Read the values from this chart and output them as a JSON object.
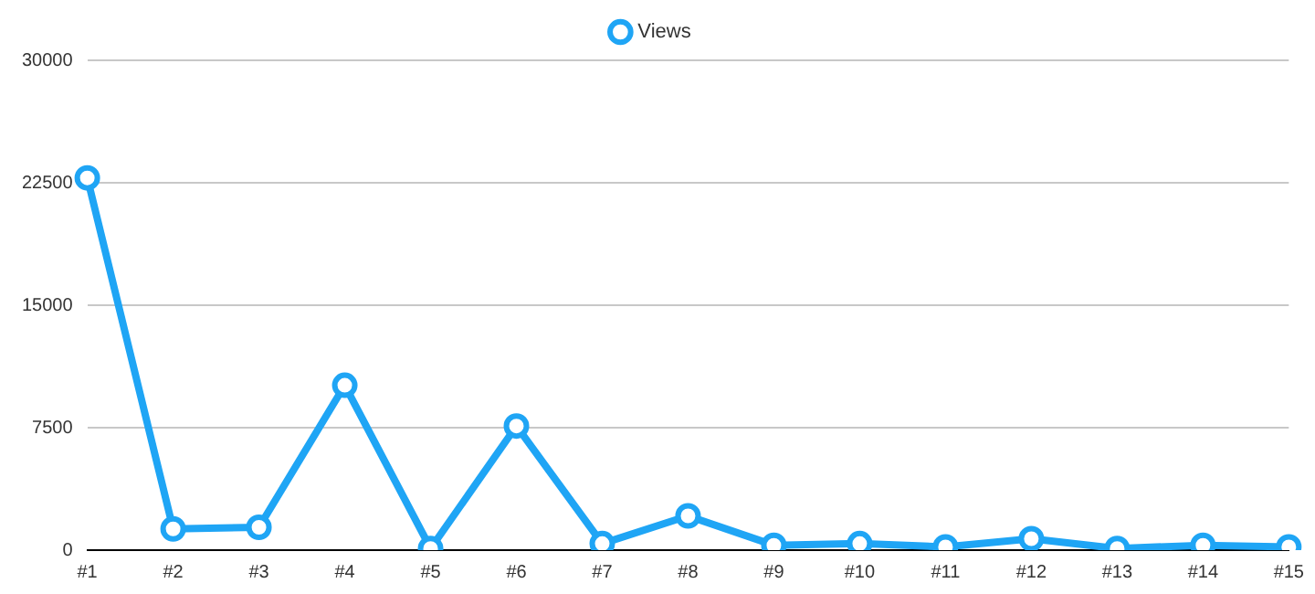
{
  "chart_data": {
    "type": "line",
    "categories": [
      "#1",
      "#2",
      "#3",
      "#4",
      "#5",
      "#6",
      "#7",
      "#8",
      "#9",
      "#10",
      "#11",
      "#12",
      "#13",
      "#14",
      "#15"
    ],
    "series": [
      {
        "name": "Views",
        "color": "#1fa5f5",
        "values": [
          22800,
          1300,
          1400,
          10100,
          100,
          7600,
          400,
          2100,
          300,
          400,
          200,
          700,
          100,
          300,
          200
        ]
      }
    ],
    "ylim": [
      0,
      30000
    ],
    "yticks": [
      0,
      7500,
      15000,
      22500,
      30000
    ],
    "grid": "y",
    "legend": "top",
    "marker": "circle",
    "line_style": "solid"
  }
}
